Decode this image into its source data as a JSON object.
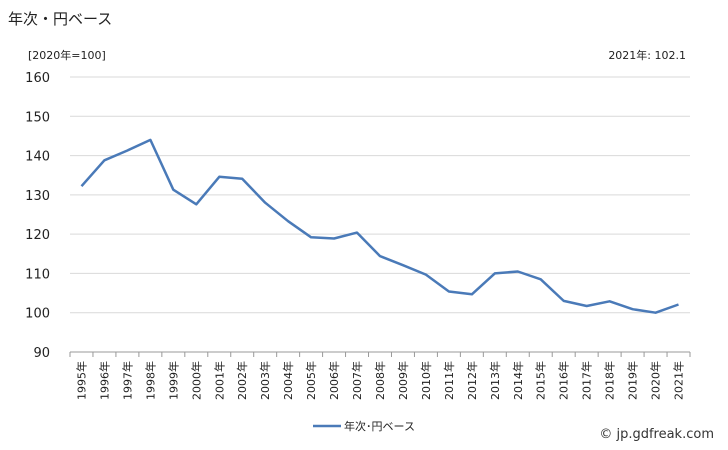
{
  "title": "年次・円ベース",
  "unit_label": "[2020年=100]",
  "note": "2021年: 102.1",
  "credit": "© jp.gdfreak.com",
  "chart_data": {
    "type": "line",
    "categories": [
      "1995年",
      "1996年",
      "1997年",
      "1998年",
      "1999年",
      "2000年",
      "2001年",
      "2002年",
      "2003年",
      "2004年",
      "2005年",
      "2006年",
      "2007年",
      "2008年",
      "2009年",
      "2010年",
      "2011年",
      "2012年",
      "2013年",
      "2014年",
      "2015年",
      "2016年",
      "2017年",
      "2018年",
      "2019年",
      "2020年",
      "2021年"
    ],
    "series": [
      {
        "name": "年次･円ベース",
        "color": "#4a7ab8",
        "values": [
          132.2,
          138.8,
          141.3,
          144.0,
          131.3,
          127.6,
          134.6,
          134.1,
          128.0,
          123.3,
          119.2,
          118.9,
          120.4,
          114.4,
          112.1,
          109.7,
          105.4,
          104.7,
          110.0,
          110.5,
          108.5,
          103.0,
          101.7,
          102.9,
          100.9,
          100.0,
          102.1
        ]
      }
    ],
    "yticks": [
      90,
      100,
      110,
      120,
      130,
      140,
      150,
      160
    ],
    "ylim": [
      90,
      160
    ],
    "grid": true,
    "legend": "bottom-center"
  }
}
